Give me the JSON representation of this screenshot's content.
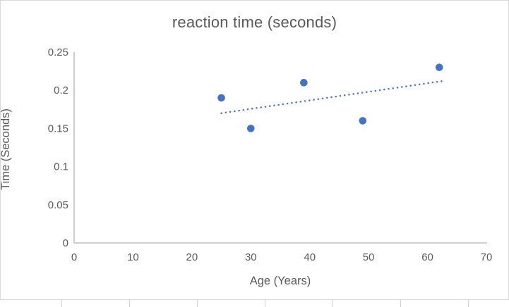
{
  "chart_data": {
    "type": "scatter",
    "title": "reaction time (seconds)",
    "xlabel": "Age (Years)",
    "ylabel": "Time (Seconds)",
    "points": [
      {
        "x": 25,
        "y": 0.19
      },
      {
        "x": 30,
        "y": 0.15
      },
      {
        "x": 39,
        "y": 0.21
      },
      {
        "x": 49,
        "y": 0.16
      },
      {
        "x": 62,
        "y": 0.23
      }
    ],
    "trendline": {
      "type": "linear",
      "style": "dotted",
      "x1": 25,
      "y1": 0.17,
      "x2": 62.5,
      "y2": 0.212
    },
    "xlim": [
      0,
      70
    ],
    "ylim": [
      0,
      0.25
    ],
    "x_tick_values": [
      0,
      10,
      20,
      30,
      40,
      50,
      60,
      70
    ],
    "x_tick_labels": [
      "0",
      "10",
      "20",
      "30",
      "40",
      "50",
      "60",
      "70"
    ],
    "y_tick_values": [
      0,
      0.05,
      0.1,
      0.15,
      0.2,
      0.25
    ],
    "y_tick_labels": [
      "0",
      "0.05",
      "0.1",
      "0.15",
      "0.2",
      "0.25"
    ],
    "grid": false,
    "legend": false,
    "colors": {
      "marker": "#4472C4",
      "trendline": "#4472C4",
      "axis": "#BFBFBF",
      "text": "#595959",
      "chart_border": "#D9D9D9"
    }
  }
}
